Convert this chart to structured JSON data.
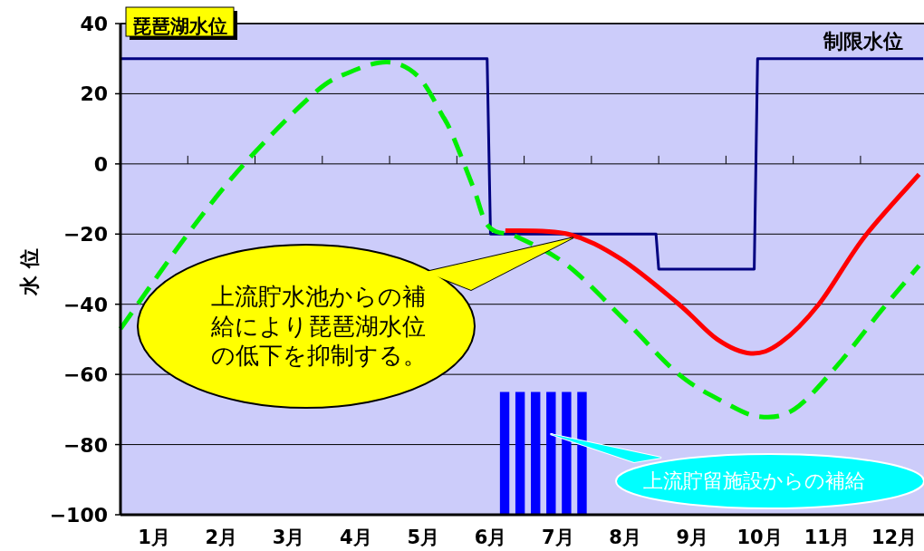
{
  "chart_data": {
    "type": "line",
    "title": "琵琶湖水位",
    "ylabel": "水 位",
    "xlim": [
      0,
      11.93
    ],
    "ylim": [
      -100,
      40
    ],
    "yticks": [
      -100,
      -80,
      -60,
      -40,
      -20,
      0,
      20,
      40
    ],
    "xticks": [
      {
        "value": 0.5,
        "label": "1月"
      },
      {
        "value": 1.5,
        "label": "2月"
      },
      {
        "value": 2.5,
        "label": "3月"
      },
      {
        "value": 3.5,
        "label": "4月"
      },
      {
        "value": 4.5,
        "label": "5月"
      },
      {
        "value": 5.5,
        "label": "6月"
      },
      {
        "value": 6.5,
        "label": "7月"
      },
      {
        "value": 7.5,
        "label": "8月"
      },
      {
        "value": 8.5,
        "label": "9月"
      },
      {
        "value": 9.5,
        "label": "10月"
      },
      {
        "value": 10.5,
        "label": "11月"
      },
      {
        "value": 11.5,
        "label": "12月"
      },
      {
        "value": 1,
        "label": null
      },
      {
        "value": 2,
        "label": null
      },
      {
        "value": 3,
        "label": null
      },
      {
        "value": 4,
        "label": null
      },
      {
        "value": 5,
        "label": null
      },
      {
        "value": 6,
        "label": null
      },
      {
        "value": 7,
        "label": null
      },
      {
        "value": 8,
        "label": null
      },
      {
        "value": 9,
        "label": null
      },
      {
        "value": 10,
        "label": null
      },
      {
        "value": 11,
        "label": null
      }
    ],
    "grid": "y",
    "series": [
      {
        "type": "bar",
        "color": "#0000ff",
        "x": [
          5.71,
          5.94,
          6.17,
          6.4,
          6.63,
          6.86
        ],
        "base": [
          -100,
          -100,
          -100,
          -100,
          -100,
          -100
        ],
        "values": [
          35,
          35,
          35,
          35,
          35,
          35
        ]
      },
      {
        "name": "制限水位",
        "color": "#000080",
        "line_style": "solid",
        "x": [
          0,
          5.45,
          5.5,
          7.96,
          8.0,
          9.42,
          9.47,
          11.93
        ],
        "values": [
          30,
          30,
          -20,
          -20,
          -30,
          -30,
          30,
          30
        ]
      },
      {
        "color": "#00ee00",
        "line_style": "dashed",
        "x": [
          0,
          1.0,
          1.84,
          2.87,
          3.39,
          3.97,
          4.42,
          4.78,
          4.94,
          5.25,
          5.48,
          5.92,
          6.65,
          7.52,
          8.3,
          8.98,
          9.49,
          10.01,
          10.63,
          11.3,
          11.87
        ],
        "values": [
          -47,
          -20,
          0,
          20,
          26,
          29,
          25,
          14,
          8,
          -7,
          -18,
          -21,
          -29,
          -45,
          -60,
          -68,
          -72,
          -70,
          -58,
          -42,
          -29
        ]
      },
      {
        "color": "#ff0000",
        "line_style": "solid",
        "x": [
          5.72,
          6.65,
          7.43,
          8.3,
          8.87,
          9.37,
          9.81,
          10.38,
          11.05,
          11.87
        ],
        "values": [
          -19,
          -20,
          -27,
          -40,
          -50,
          -54,
          -51,
          -40,
          -21,
          -3
        ]
      }
    ],
    "annotations": [
      {
        "text": "上流貯水池からの補給により琵琶湖水位の低下を抑制する。",
        "x": 6.73,
        "y": -21
      },
      {
        "text": "上流貯留施設からの補給",
        "x": 6.39,
        "y": -77
      }
    ]
  }
}
